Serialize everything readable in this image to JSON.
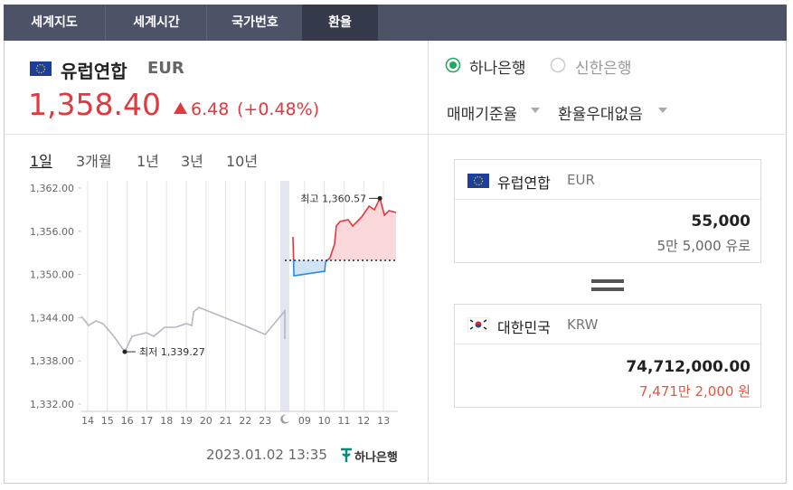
{
  "tabs": [
    "세계지도",
    "세계시간",
    "국가번호",
    "환율"
  ],
  "header": {
    "country": "유럽연합",
    "code": "EUR",
    "price": "1,358.40",
    "change": "6.48",
    "change_pct": "(+0.48%)"
  },
  "ranges": [
    "1일",
    "3개월",
    "1년",
    "3년",
    "10년"
  ],
  "chart_data": {
    "type": "line",
    "xlim": [
      -0.32,
      15.73
    ],
    "xticks": [
      {
        "value": 0,
        "label": "14"
      },
      {
        "value": 1,
        "label": "15"
      },
      {
        "value": 2,
        "label": "16"
      },
      {
        "value": 3,
        "label": "17"
      },
      {
        "value": 4,
        "label": "18"
      },
      {
        "value": 5,
        "label": "19"
      },
      {
        "value": 6,
        "label": "20"
      },
      {
        "value": 7,
        "label": "21"
      },
      {
        "value": 8,
        "label": "22"
      },
      {
        "value": 9,
        "label": "23"
      },
      {
        "value": 11,
        "label": "09"
      },
      {
        "value": 12,
        "label": "10"
      },
      {
        "value": 13,
        "label": "11"
      },
      {
        "value": 14,
        "label": "12"
      },
      {
        "value": 15,
        "label": "13"
      }
    ],
    "ylim": [
      1332,
      1362
    ],
    "yticks": [
      {
        "value": 1332,
        "label": "1,332.00"
      },
      {
        "value": 1338,
        "label": "1,338.00"
      },
      {
        "value": 1344,
        "label": "1,344.00"
      },
      {
        "value": 1350,
        "label": "1,350.00"
      },
      {
        "value": 1356,
        "label": "1,356.00"
      },
      {
        "value": 1362,
        "label": "1,362.00"
      }
    ],
    "grid": "x",
    "reference_line": 1351.96,
    "series": [
      {
        "color": "#b3b7c4",
        "x": [
          -0.32,
          0.05,
          0.41,
          0.78,
          1.33,
          1.88,
          2.25,
          2.98,
          3.35,
          3.9,
          4.45,
          5.0,
          5.28,
          5.37,
          5.64,
          6.56,
          7.94,
          9.0,
          10.0,
          10.0
        ],
        "values": [
          1344.18,
          1342.92,
          1343.55,
          1343.17,
          1341.41,
          1339.27,
          1341.41,
          1341.92,
          1341.41,
          1342.67,
          1342.67,
          1343.17,
          1342.92,
          1344.8,
          1345.43,
          1344.43,
          1342.92,
          1341.67,
          1344.93,
          1341.04
        ]
      },
      {
        "color": "#e0393e",
        "color_below": "#2f8ad8",
        "fill": "#fbd9da",
        "fill_below": "#cfe5f7",
        "x": [
          10.41,
          10.46,
          12.02,
          12.06,
          12.29,
          12.52,
          12.61,
          12.8,
          13.21,
          13.44,
          13.9,
          14.27,
          14.54,
          14.82,
          15.05,
          15.28,
          15.64
        ],
        "values": [
          1355.22,
          1349.82,
          1350.45,
          1351.71,
          1352.33,
          1354.22,
          1356.73,
          1357.36,
          1357.61,
          1356.73,
          1358.0,
          1359.49,
          1358.99,
          1360.57,
          1358.23,
          1358.86,
          1358.61
        ]
      }
    ],
    "annotations": [
      {
        "text": "최고 1,360.57",
        "x": 14.82,
        "y": 1360.57
      },
      {
        "text": "최저 1,339.27",
        "x": 1.88,
        "y": 1339.27
      }
    ]
  },
  "footer": {
    "datetime": "2023.01.02 13:35",
    "bank_logo": "하나은행"
  },
  "banks": [
    "하나은행",
    "신한은행"
  ],
  "dropdowns": [
    "매매기준율",
    "환율우대없음"
  ],
  "from": {
    "country": "유럽연합",
    "code": "EUR",
    "amount": "55,000",
    "amount_text": "5만 5,000 유로"
  },
  "to": {
    "country": "대한민국",
    "code": "KRW",
    "amount": "74,712,000.00",
    "amount_text": "7,471만 2,000 원"
  }
}
